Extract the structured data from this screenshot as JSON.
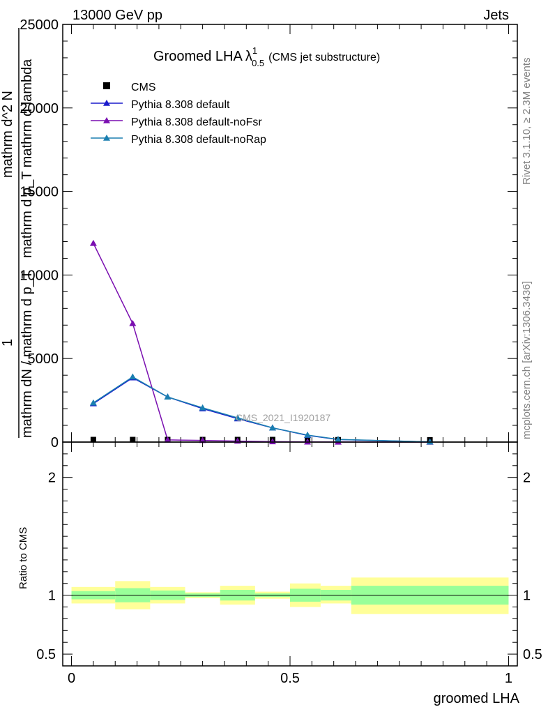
{
  "header": {
    "energy_label": "13000 GeV pp",
    "process_label": "Jets",
    "rivet_label": "Rivet 3.1.10, ≥ 2.3M events",
    "site_label": "mcplots.cern.ch [arXiv:1306.3436]",
    "watermark": "CMS_2021_I1920187"
  },
  "colors": {
    "cms": "#000000",
    "pythia_default": "#1a1acc",
    "pythia_nofsr": "#7a0fb0",
    "pythia_norap": "#1a7fb0",
    "band_inner": "#99ff99",
    "band_outer": "#ffff99"
  },
  "chart_data": [
    {
      "type": "line",
      "title": "Groomed LHA",
      "title_symbol": "λ",
      "title_sup": "1",
      "title_sub": "0.5",
      "title_suffix": "(CMS jet substructure)",
      "ylabel_top": "1",
      "ylabel_bottom_lines": [
        "mathrm d p_T mathrm d lambda",
        "mathrm d^2 N",
        "mathrm dN / mathrm d p_T"
      ],
      "ylabel_parts": {
        "numerator": "mathrm d²N",
        "denominator": "mathrm d p",
        "sub": "T",
        "lambda": "mathrm d lambda",
        "frac_num": "1",
        "frac_den": "mathrm dN / mathrm d p"
      },
      "xlim": [
        -0.02,
        1.02
      ],
      "ylim": [
        0,
        25000
      ],
      "yticks": [
        0,
        5000,
        10000,
        15000,
        20000,
        25000
      ],
      "ytick_labels": [
        "0",
        "5000",
        "10000",
        "15000",
        "20000",
        "25000"
      ],
      "legend": {
        "placement": "top-left",
        "entries": [
          "CMS",
          "Pythia 8.308 default",
          "Pythia 8.308 default-noFsr",
          "Pythia 8.308 default-noRap"
        ]
      },
      "series": [
        {
          "name": "CMS",
          "marker": "square",
          "x": [
            0.05,
            0.14,
            0.22,
            0.3,
            0.38,
            0.46,
            0.54,
            0.61,
            0.82
          ],
          "y": [
            20,
            20,
            20,
            20,
            20,
            20,
            20,
            10,
            5
          ]
        },
        {
          "name": "Pythia 8.308 default",
          "marker": "triangle",
          "x": [
            0.05,
            0.14,
            0.22,
            0.3,
            0.38,
            0.46,
            0.54,
            0.61,
            0.82
          ],
          "y": [
            2300,
            3850,
            2700,
            2000,
            1400,
            850,
            400,
            150,
            10
          ]
        },
        {
          "name": "Pythia 8.308 default-noFsr",
          "marker": "triangle",
          "x": [
            0.05,
            0.14,
            0.22,
            0.3,
            0.38,
            0.46,
            0.54,
            0.61,
            0.82
          ],
          "y": [
            11900,
            7100,
            130,
            100,
            60,
            25,
            10,
            5,
            2
          ]
        },
        {
          "name": "Pythia 8.308 default-noRap",
          "marker": "triangle",
          "x": [
            0.05,
            0.14,
            0.22,
            0.3,
            0.38,
            0.46,
            0.54,
            0.61,
            0.82
          ],
          "y": [
            2350,
            3900,
            2700,
            2050,
            1450,
            850,
            420,
            160,
            10
          ]
        }
      ]
    },
    {
      "type": "area",
      "ylabel": "Ratio to CMS",
      "xlabel": "groomed LHA",
      "xlim": [
        -0.02,
        1.02
      ],
      "ylim": [
        0.4,
        2.3
      ],
      "yticks": [
        0.5,
        1,
        2
      ],
      "ytick_labels": [
        "0.5",
        "1",
        "2"
      ],
      "xticks": [
        0,
        0.5,
        1
      ],
      "xtick_labels": [
        "0",
        "0.5",
        "1"
      ],
      "bins": [
        {
          "lo": 0.0,
          "hi": 0.1,
          "inner": [
            0.965,
            1.035
          ],
          "outer": [
            0.93,
            1.07
          ]
        },
        {
          "lo": 0.1,
          "hi": 0.18,
          "inner": [
            0.94,
            1.06
          ],
          "outer": [
            0.88,
            1.12
          ]
        },
        {
          "lo": 0.18,
          "hi": 0.26,
          "inner": [
            0.96,
            1.04
          ],
          "outer": [
            0.93,
            1.07
          ]
        },
        {
          "lo": 0.26,
          "hi": 0.34,
          "inner": [
            0.985,
            1.015
          ],
          "outer": [
            0.975,
            1.025
          ]
        },
        {
          "lo": 0.34,
          "hi": 0.42,
          "inner": [
            0.955,
            1.045
          ],
          "outer": [
            0.92,
            1.08
          ]
        },
        {
          "lo": 0.42,
          "hi": 0.5,
          "inner": [
            0.985,
            1.015
          ],
          "outer": [
            0.97,
            1.03
          ]
        },
        {
          "lo": 0.5,
          "hi": 0.57,
          "inner": [
            0.945,
            1.055
          ],
          "outer": [
            0.9,
            1.1
          ]
        },
        {
          "lo": 0.57,
          "hi": 0.64,
          "inner": [
            0.955,
            1.045
          ],
          "outer": [
            0.93,
            1.08
          ]
        },
        {
          "lo": 0.64,
          "hi": 1.0,
          "inner": [
            0.92,
            1.08
          ],
          "outer": [
            0.84,
            1.15
          ]
        }
      ],
      "reference_line": 1
    }
  ]
}
